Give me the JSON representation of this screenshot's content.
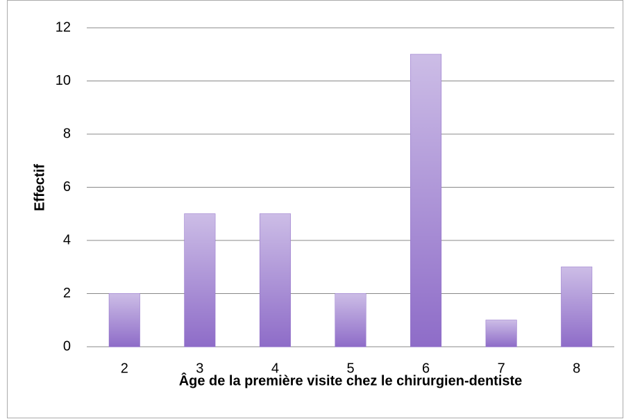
{
  "chart_data": {
    "type": "bar",
    "x_label": "Âge de la première visite chez le chirurgien-dentiste",
    "y_label": "Effectif",
    "categories": [
      "2",
      "3",
      "4",
      "5",
      "6",
      "7",
      "8"
    ],
    "values": [
      2,
      5,
      5,
      2,
      11,
      1,
      3
    ],
    "color": "#8e6cc8",
    "ylim": [
      0,
      12
    ],
    "yticks": [
      0,
      2,
      4,
      6,
      8,
      10,
      12
    ],
    "grid": true
  }
}
